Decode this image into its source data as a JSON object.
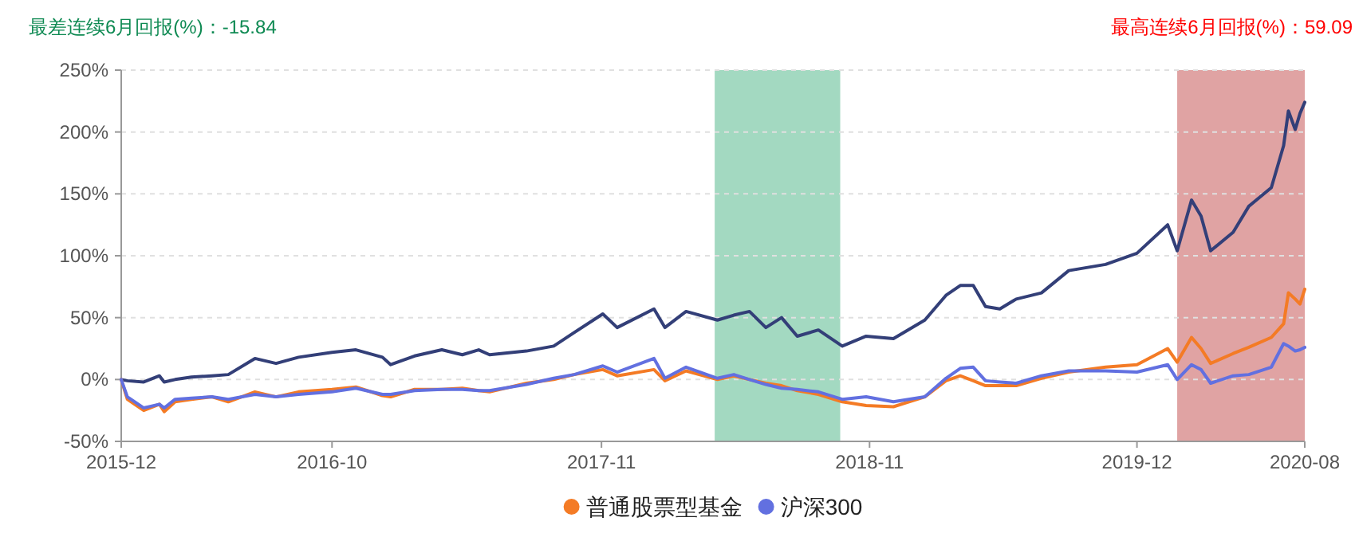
{
  "chart_data": {
    "type": "line",
    "ylim": [
      -50,
      250
    ],
    "yticks": [
      {
        "value": -50,
        "label": "-50%"
      },
      {
        "value": 0,
        "label": "0%"
      },
      {
        "value": 50,
        "label": "50%"
      },
      {
        "value": 100,
        "label": "100%"
      },
      {
        "value": 150,
        "label": "150%"
      },
      {
        "value": 200,
        "label": "200%"
      },
      {
        "value": 250,
        "label": "250%"
      }
    ],
    "xlim": [
      "2015-12-01",
      "2020-08-31"
    ],
    "xticks": [
      {
        "value": "2015-12-01",
        "label": "2015-12"
      },
      {
        "value": "2016-10-05",
        "label": "2016-10"
      },
      {
        "value": "2017-11-04",
        "label": "2017-11"
      },
      {
        "value": "2018-12-02",
        "label": "2018-11"
      },
      {
        "value": "2019-12-29",
        "label": "2019-12"
      },
      {
        "value": "2020-08-31",
        "label": "2020-08"
      }
    ],
    "x": [
      "2015-12-01",
      "2015-12-10",
      "2016-01-03",
      "2016-01-26",
      "2016-02-02",
      "2016-02-18",
      "2016-03-13",
      "2016-04-12",
      "2016-05-06",
      "2016-06-14",
      "2016-07-15",
      "2016-08-17",
      "2016-10-05",
      "2016-11-09",
      "2016-12-18",
      "2016-12-30",
      "2017-02-03",
      "2017-03-15",
      "2017-04-14",
      "2017-05-08",
      "2017-05-24",
      "2017-07-17",
      "2017-08-26",
      "2017-09-25",
      "2017-11-06",
      "2017-11-27",
      "2018-01-20",
      "2018-02-05",
      "2018-03-08",
      "2018-04-23",
      "2018-05-17",
      "2018-06-09",
      "2018-07-03",
      "2018-07-26",
      "2018-08-18",
      "2018-09-18",
      "2018-10-23",
      "2018-11-27",
      "2019-01-06",
      "2019-02-21",
      "2019-03-24",
      "2019-04-14",
      "2019-05-03",
      "2019-05-21",
      "2019-06-11",
      "2019-07-05",
      "2019-08-11",
      "2019-09-20",
      "2019-11-13",
      "2019-12-29",
      "2020-02-12",
      "2020-02-26",
      "2020-03-18",
      "2020-04-01",
      "2020-04-15",
      "2020-05-18",
      "2020-06-10",
      "2020-07-13",
      "2020-07-31",
      "2020-08-07",
      "2020-08-17",
      "2020-08-24",
      "2020-08-31"
    ],
    "series": [
      {
        "color": "#333f78",
        "values": [
          0,
          -1,
          -2,
          3,
          -2,
          0,
          2,
          3,
          4,
          17,
          13,
          18,
          22,
          24,
          18,
          12,
          19,
          24,
          20,
          24,
          20,
          23,
          27,
          38,
          53,
          42,
          57,
          42,
          55,
          48,
          52,
          55,
          42,
          50,
          35,
          40,
          27,
          35,
          33,
          48,
          68,
          76,
          76,
          59,
          57,
          65,
          70,
          88,
          93,
          102,
          125,
          104,
          145,
          132,
          104,
          119,
          140,
          155,
          189,
          217,
          202,
          215,
          224
        ]
      },
      {
        "name": "普通股票型基金",
        "color": "#f47b25",
        "values": [
          0,
          -16,
          -25,
          -20,
          -26,
          -18,
          -16,
          -14,
          -18,
          -10,
          -14,
          -10,
          -8,
          -6,
          -13,
          -14,
          -8,
          -8,
          -7,
          -9,
          -10,
          -3,
          0,
          4,
          8,
          3,
          8,
          -1,
          7,
          0,
          3,
          0,
          -3,
          -5,
          -9,
          -12,
          -18,
          -21,
          -22,
          -14,
          -1,
          3,
          -1,
          -5,
          -5,
          -5,
          1,
          6,
          10,
          12,
          25,
          14,
          34,
          25,
          13,
          21,
          26,
          34,
          45,
          70,
          65,
          61,
          73
        ]
      },
      {
        "name": "沪深300",
        "color": "#6270e0",
        "values": [
          0,
          -14,
          -23,
          -20,
          -23,
          -16,
          -15,
          -14,
          -16,
          -12,
          -14,
          -12,
          -10,
          -7,
          -12,
          -12,
          -9,
          -8,
          -8,
          -9,
          -9,
          -4,
          1,
          4,
          11,
          6,
          17,
          1,
          10,
          1,
          4,
          0,
          -4,
          -7,
          -8,
          -10,
          -16,
          -14,
          -18,
          -14,
          1,
          9,
          10,
          -1,
          -2,
          -3,
          3,
          7,
          7,
          6,
          12,
          0,
          12,
          8,
          -3,
          3,
          4,
          10,
          29,
          27,
          23,
          24,
          26
        ]
      }
    ],
    "bands": [
      {
        "axis": "x",
        "from": "2018-04-19",
        "to": "2018-10-20",
        "color": "#a3d9c1"
      },
      {
        "axis": "x",
        "from": "2020-02-26",
        "to": "2020-08-31",
        "color": "#e0a3a3"
      }
    ],
    "annotations": [
      "最差连续6月回报(%)：-15.84",
      "最高连续6月回报(%)：59.09"
    ],
    "grid": "y",
    "legend": "bottom"
  }
}
